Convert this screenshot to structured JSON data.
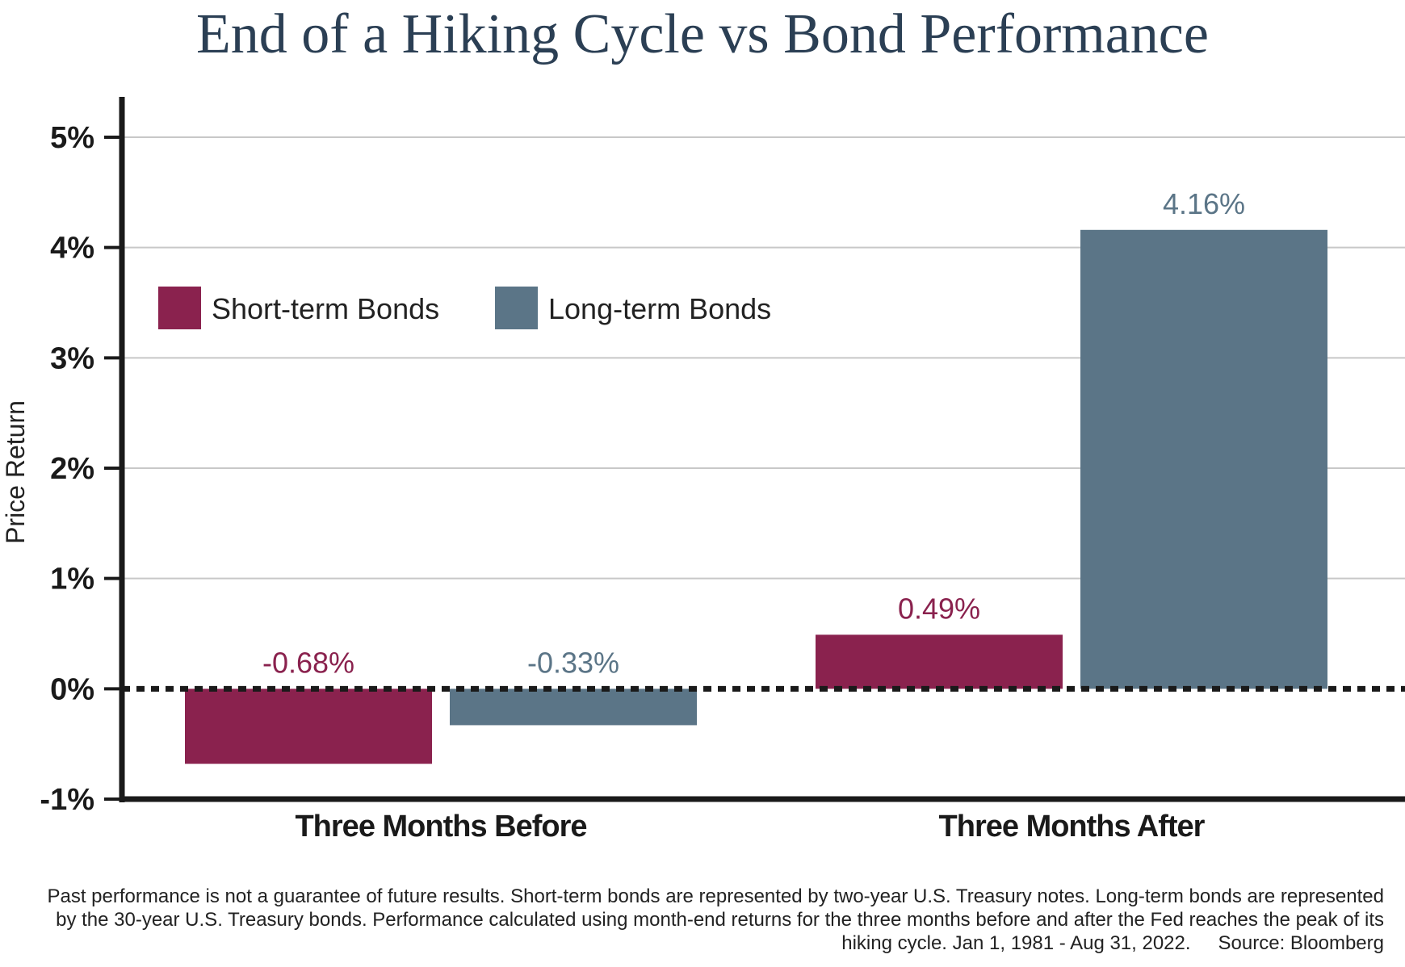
{
  "colors": {
    "short_term": "#8a224e",
    "long_term": "#5b7587",
    "title": "#2b3f54",
    "axis": "#1a1a1a",
    "grid": "#c8c8c8"
  },
  "chart_data": {
    "type": "bar",
    "title": "End of a Hiking Cycle vs Bond Performance",
    "ylabel": "Price Return",
    "xlabel": "",
    "categories": [
      "Three Months Before",
      "Three Months After"
    ],
    "series": [
      {
        "name": "Short-term Bonds",
        "values": [
          -0.68,
          0.49
        ],
        "labels": [
          "-0.68%",
          "0.49%"
        ]
      },
      {
        "name": "Long-term Bonds",
        "values": [
          -0.33,
          4.16
        ],
        "labels": [
          "-0.33%",
          "4.16%"
        ]
      }
    ],
    "ylim": [
      -1,
      5
    ],
    "yticks": [
      -1,
      0,
      1,
      2,
      3,
      4,
      5
    ],
    "ytick_labels": [
      "-1%",
      "0%",
      "1%",
      "2%",
      "3%",
      "4%",
      "5%"
    ],
    "grid": true,
    "zero_line": "dotted",
    "legend_position": "top-left"
  },
  "footnote": {
    "text": "Past performance is not a guarantee of future results. Short-term bonds are represented by two-year U.S. Treasury notes. Long-term bonds are represented by the 30-year U.S. Treasury bonds. Performance calculated using month-end returns for the three months before and after the Fed reaches the peak of its hiking cycle. Jan 1, 1981 - Aug 31, 2022.",
    "source": "Source: Bloomberg"
  }
}
